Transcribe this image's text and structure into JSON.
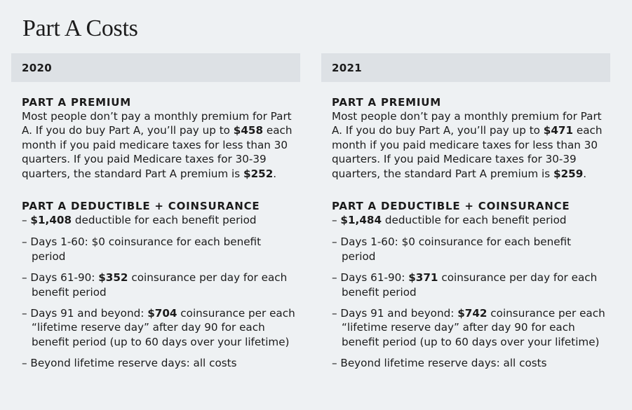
{
  "title": "Part A Costs",
  "columns": [
    {
      "year": "2020",
      "premium_heading": "PART A PREMIUM",
      "premium_text": [
        {
          "t": "Most people don’t pay a monthly premium for Part A. If you do buy Part A, you’ll pay up to "
        },
        {
          "t": "$458",
          "b": true
        },
        {
          "t": " each month if you paid medicare taxes for less than 30 quarters. If you paid Medicare taxes for 30-39 quarters, the standard Part A premium is "
        },
        {
          "t": "$252",
          "b": true
        },
        {
          "t": "."
        }
      ],
      "deductible_heading": "PART A DEDUCTIBLE + COINSURANCE",
      "items": [
        [
          {
            "t": "– "
          },
          {
            "t": "$1,408",
            "b": true
          },
          {
            "t": " deductible for each benefit period"
          }
        ],
        [
          {
            "t": "– Days 1-60: $0 coinsurance for each benefit period"
          }
        ],
        [
          {
            "t": "– Days 61-90: "
          },
          {
            "t": "$352",
            "b": true
          },
          {
            "t": " coinsurance per day for each benefit period"
          }
        ],
        [
          {
            "t": "– Days 91 and beyond: "
          },
          {
            "t": "$704",
            "b": true
          },
          {
            "t": " coinsurance per each “lifetime reserve day” after day 90 for each benefit period (up to 60 days over your lifetime)"
          }
        ],
        [
          {
            "t": "– Beyond lifetime reserve days: all costs"
          }
        ]
      ]
    },
    {
      "year": "2021",
      "premium_heading": "PART A PREMIUM",
      "premium_text": [
        {
          "t": "Most people don’t pay a monthly premium for Part A. If you do buy Part A, you’ll pay up to "
        },
        {
          "t": "$471",
          "b": true
        },
        {
          "t": " each month if you paid medicare taxes for less than 30 quarters. If you paid Medicare taxes for 30-39 quarters, the standard Part A premium is "
        },
        {
          "t": "$259",
          "b": true
        },
        {
          "t": "."
        }
      ],
      "deductible_heading": "PART A DEDUCTIBLE + COINSURANCE",
      "items": [
        [
          {
            "t": "– "
          },
          {
            "t": "$1,484",
            "b": true
          },
          {
            "t": " deductible for each benefit period"
          }
        ],
        [
          {
            "t": "– Days 1-60: $0 coinsurance for each benefit period"
          }
        ],
        [
          {
            "t": "– Days 61-90: "
          },
          {
            "t": "$371",
            "b": true
          },
          {
            "t": " coinsurance per day for each benefit period"
          }
        ],
        [
          {
            "t": "– Days 91 and beyond: "
          },
          {
            "t": "$742",
            "b": true
          },
          {
            "t": " coinsurance per each “lifetime reserve day” after day 90 for each benefit period (up to 60 days over your lifetime)"
          }
        ],
        [
          {
            "t": "– Beyond lifetime reserve days: all costs"
          }
        ]
      ]
    }
  ]
}
